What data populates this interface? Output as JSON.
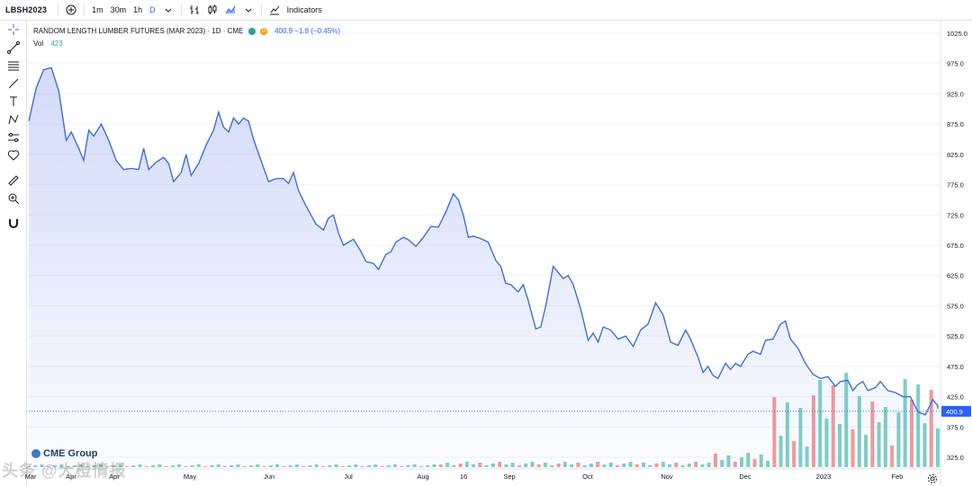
{
  "toolbar": {
    "symbol": "LBSH2023",
    "add_icon": "plus-circle-icon",
    "intervals": [
      "1m",
      "30m",
      "1h",
      "D"
    ],
    "active_interval": "D",
    "indicators_label": "Indicators"
  },
  "legend": {
    "title": "RANDOM LENGTH LUMBER FUTURES (MAR 2023) · 1D · CME",
    "status_dot_color": "#26a69a",
    "delay_badge": "D",
    "delay_badge_color": "#ff9800",
    "price_change": "400.9 −1.8 (−0.45%)",
    "vol_label": "Vol",
    "vol_value": "423"
  },
  "branding": {
    "cme": "CME Group",
    "watermark": "头条 @大橙情报"
  },
  "colors": {
    "line": "#2962ff",
    "area": "#5b7de8",
    "vol_up": "#26a69a",
    "vol_down": "#ef5350",
    "price_tag": "#2962ff"
  },
  "chart_data": {
    "type": "area",
    "title": "RANDOM LENGTH LUMBER FUTURES (MAR 2023) · 1D · CME",
    "x_start": "2022-03-01",
    "x_end": "2023-02-28",
    "x_tick_labels": [
      "Mar",
      "Apr",
      "Apr",
      "May",
      "Jun",
      "Jul",
      "Aug",
      "16",
      "Sep",
      "Oct",
      "Nov",
      "Dec",
      "2023",
      "Feb"
    ],
    "y_tick_labels": [
      "1025.0",
      "975.0",
      "925.0",
      "875.0",
      "825.0",
      "775.0",
      "725.0",
      "675.0",
      "625.0",
      "575.0",
      "525.0",
      "475.0",
      "425.0",
      "375.0",
      "325.0"
    ],
    "ylim": [
      310,
      1050
    ],
    "last_price": "400.9",
    "price_series": [
      [
        "2022-03-01",
        880
      ],
      [
        "2022-03-04",
        935
      ],
      [
        "2022-03-07",
        965
      ],
      [
        "2022-03-10",
        968
      ],
      [
        "2022-03-13",
        930
      ],
      [
        "2022-03-16",
        848
      ],
      [
        "2022-03-18",
        862
      ],
      [
        "2022-03-21",
        835
      ],
      [
        "2022-03-23",
        815
      ],
      [
        "2022-03-25",
        865
      ],
      [
        "2022-03-27",
        855
      ],
      [
        "2022-03-30",
        875
      ],
      [
        "2022-04-02",
        848
      ],
      [
        "2022-04-05",
        815
      ],
      [
        "2022-04-08",
        800
      ],
      [
        "2022-04-11",
        802
      ],
      [
        "2022-04-14",
        800
      ],
      [
        "2022-04-16",
        835
      ],
      [
        "2022-04-18",
        800
      ],
      [
        "2022-04-21",
        812
      ],
      [
        "2022-04-24",
        820
      ],
      [
        "2022-04-26",
        810
      ],
      [
        "2022-04-28",
        780
      ],
      [
        "2022-05-01",
        795
      ],
      [
        "2022-05-03",
        825
      ],
      [
        "2022-05-05",
        790
      ],
      [
        "2022-05-08",
        810
      ],
      [
        "2022-05-11",
        840
      ],
      [
        "2022-05-14",
        865
      ],
      [
        "2022-05-16",
        895
      ],
      [
        "2022-05-18",
        870
      ],
      [
        "2022-05-20",
        862
      ],
      [
        "2022-05-22",
        885
      ],
      [
        "2022-05-24",
        875
      ],
      [
        "2022-05-26",
        885
      ],
      [
        "2022-05-28",
        880
      ],
      [
        "2022-05-30",
        850
      ],
      [
        "2022-06-02",
        815
      ],
      [
        "2022-06-05",
        780
      ],
      [
        "2022-06-08",
        785
      ],
      [
        "2022-06-11",
        785
      ],
      [
        "2022-06-13",
        777
      ],
      [
        "2022-06-15",
        795
      ],
      [
        "2022-06-17",
        765
      ],
      [
        "2022-06-20",
        740
      ],
      [
        "2022-06-22",
        725
      ],
      [
        "2022-06-24",
        710
      ],
      [
        "2022-06-27",
        700
      ],
      [
        "2022-06-29",
        720
      ],
      [
        "2022-07-01",
        725
      ],
      [
        "2022-07-03",
        695
      ],
      [
        "2022-07-05",
        675
      ],
      [
        "2022-07-07",
        680
      ],
      [
        "2022-07-09",
        685
      ],
      [
        "2022-07-12",
        665
      ],
      [
        "2022-07-14",
        648
      ],
      [
        "2022-07-17",
        645
      ],
      [
        "2022-07-19",
        635
      ],
      [
        "2022-07-22",
        660
      ],
      [
        "2022-07-24",
        664
      ],
      [
        "2022-07-26",
        680
      ],
      [
        "2022-07-29",
        688
      ],
      [
        "2022-07-31",
        684
      ],
      [
        "2022-08-03",
        673
      ],
      [
        "2022-08-06",
        688
      ],
      [
        "2022-08-09",
        706
      ],
      [
        "2022-08-12",
        705
      ],
      [
        "2022-08-15",
        730
      ],
      [
        "2022-08-18",
        760
      ],
      [
        "2022-08-20",
        750
      ],
      [
        "2022-08-22",
        725
      ],
      [
        "2022-08-24",
        688
      ],
      [
        "2022-08-26",
        690
      ],
      [
        "2022-08-29",
        686
      ],
      [
        "2022-09-01",
        680
      ],
      [
        "2022-09-04",
        650
      ],
      [
        "2022-09-06",
        640
      ],
      [
        "2022-09-08",
        612
      ],
      [
        "2022-09-10",
        610
      ],
      [
        "2022-09-13",
        598
      ],
      [
        "2022-09-15",
        610
      ],
      [
        "2022-09-17",
        584
      ],
      [
        "2022-09-20",
        537
      ],
      [
        "2022-09-22",
        540
      ],
      [
        "2022-09-24",
        575
      ],
      [
        "2022-09-27",
        640
      ],
      [
        "2022-09-29",
        630
      ],
      [
        "2022-10-01",
        620
      ],
      [
        "2022-10-03",
        625
      ],
      [
        "2022-10-05",
        610
      ],
      [
        "2022-10-08",
        570
      ],
      [
        "2022-10-11",
        518
      ],
      [
        "2022-10-13",
        530
      ],
      [
        "2022-10-15",
        515
      ],
      [
        "2022-10-17",
        540
      ],
      [
        "2022-10-20",
        535
      ],
      [
        "2022-10-23",
        520
      ],
      [
        "2022-10-26",
        525
      ],
      [
        "2022-10-29",
        508
      ],
      [
        "2022-11-01",
        535
      ],
      [
        "2022-11-04",
        545
      ],
      [
        "2022-11-07",
        580
      ],
      [
        "2022-11-10",
        560
      ],
      [
        "2022-11-13",
        515
      ],
      [
        "2022-11-16",
        510
      ],
      [
        "2022-11-19",
        535
      ],
      [
        "2022-11-21",
        520
      ],
      [
        "2022-11-24",
        490
      ],
      [
        "2022-11-26",
        465
      ],
      [
        "2022-11-28",
        475
      ],
      [
        "2022-11-30",
        460
      ],
      [
        "2022-12-02",
        455
      ],
      [
        "2022-12-05",
        480
      ],
      [
        "2022-12-07",
        470
      ],
      [
        "2022-12-09",
        480
      ],
      [
        "2022-12-11",
        475
      ],
      [
        "2022-12-14",
        495
      ],
      [
        "2022-12-16",
        500
      ],
      [
        "2022-12-19",
        495
      ],
      [
        "2022-12-21",
        518
      ],
      [
        "2022-12-24",
        520
      ],
      [
        "2022-12-27",
        545
      ],
      [
        "2022-12-29",
        550
      ],
      [
        "2022-12-31",
        520
      ],
      [
        "2023-01-03",
        505
      ],
      [
        "2023-01-06",
        480
      ],
      [
        "2023-01-09",
        462
      ],
      [
        "2023-01-12",
        455
      ],
      [
        "2023-01-15",
        458
      ],
      [
        "2023-01-18",
        442
      ],
      [
        "2023-01-20",
        450
      ],
      [
        "2023-01-23",
        452
      ],
      [
        "2023-01-25",
        435
      ],
      [
        "2023-01-27",
        445
      ],
      [
        "2023-01-29",
        450
      ],
      [
        "2023-01-31",
        435
      ],
      [
        "2023-02-03",
        440
      ],
      [
        "2023-02-05",
        450
      ],
      [
        "2023-02-08",
        435
      ],
      [
        "2023-02-11",
        432
      ],
      [
        "2023-02-14",
        425
      ],
      [
        "2023-02-17",
        425
      ],
      [
        "2023-02-20",
        400
      ],
      [
        "2023-02-23",
        395
      ],
      [
        "2023-02-26",
        420
      ],
      [
        "2023-02-28",
        410
      ]
    ],
    "price_series_tail": [
      [
        "2023-02-28",
        405
      ]
    ]
  }
}
